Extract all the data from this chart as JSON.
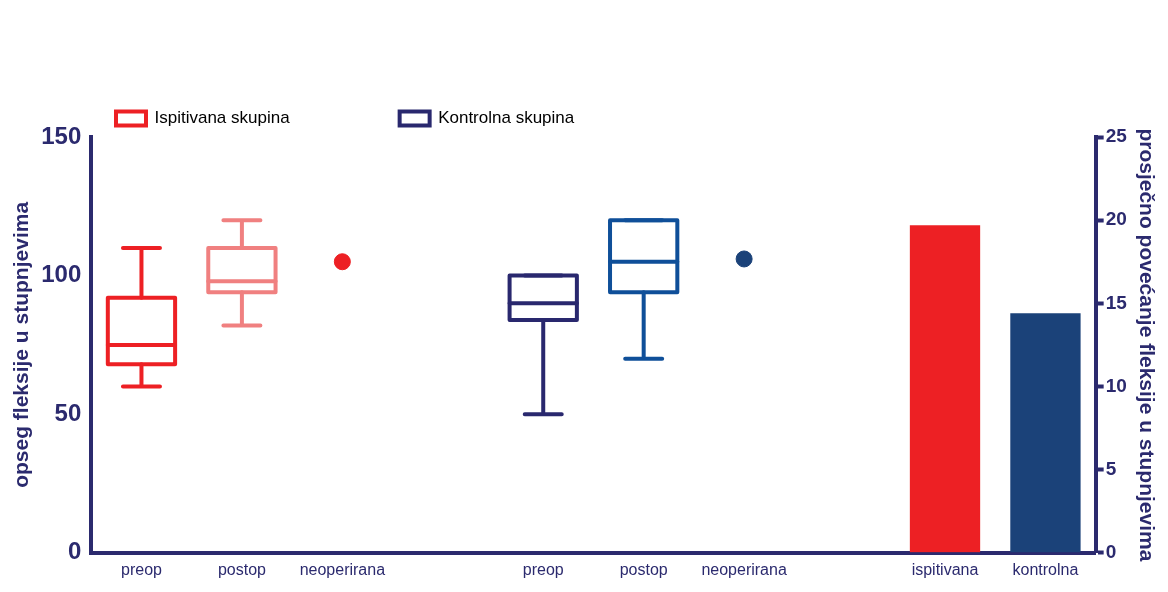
{
  "chart_data": {
    "type": "box",
    "ylabel": "opseg fleksije u stupnjevima",
    "y2label": "prosječno povećanje fleksije u stupnjevima",
    "categories": [
      "preop",
      "postop",
      "neoperirana",
      null,
      "preop",
      "postop",
      "neoperirana",
      null,
      "ispitivana",
      "kontrolna"
    ],
    "series": [
      {
        "name": "Ispitivana skupina",
        "color": "#ed2024",
        "colors": [
          "#ed2024",
          "#f08080",
          null,
          null,
          null,
          null,
          null,
          null,
          null,
          null
        ],
        "boxes": [
          {
            "low": 60,
            "q1": 68,
            "median": 75,
            "q3": 92,
            "high": 110
          },
          {
            "low": 82,
            "q1": 94,
            "median": 98,
            "q3": 110,
            "high": 120
          },
          null,
          null,
          null,
          null,
          null,
          null,
          null,
          null
        ]
      },
      {
        "name": "Kontrolna skupina",
        "color": "#29286e",
        "colors": [
          null,
          null,
          null,
          null,
          "#29286e",
          "#0f4f99",
          null,
          null,
          null,
          null
        ],
        "boxes": [
          null,
          null,
          null,
          null,
          {
            "low": 50,
            "q1": 84,
            "median": 90,
            "q3": 100,
            "high": 100
          },
          {
            "low": 70,
            "q1": 94,
            "median": 105,
            "q3": 120,
            "high": 120
          },
          null,
          null,
          null,
          null
        ]
      },
      {
        "type": "scatter",
        "color": "#ed2024",
        "values": [
          null,
          null,
          105,
          null,
          null,
          null,
          null,
          null,
          null,
          null
        ]
      },
      {
        "type": "scatter",
        "color": "#1b4279",
        "values": [
          null,
          null,
          null,
          null,
          null,
          null,
          106,
          null,
          null,
          null
        ]
      },
      {
        "type": "bar",
        "axis": "y2",
        "colors": [
          null,
          null,
          null,
          null,
          null,
          null,
          null,
          null,
          "#ed2024",
          "#1b4279"
        ],
        "values": [
          null,
          null,
          null,
          null,
          null,
          null,
          null,
          null,
          19.7,
          14.4
        ]
      }
    ],
    "ylim": [
      0,
      150
    ],
    "yticks": [
      0,
      50,
      100,
      150
    ],
    "y2lim": [
      0,
      25
    ],
    "y2ticks": [
      0,
      5,
      10,
      15,
      20,
      25
    ],
    "legend": "top left",
    "marker": "circle",
    "grid": false
  }
}
